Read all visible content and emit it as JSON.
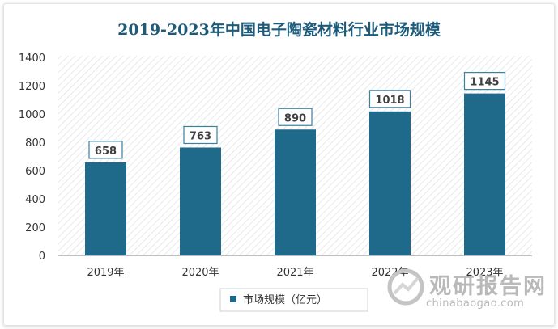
{
  "chart_data": {
    "type": "bar",
    "title": "2019-2023年中国电子陶瓷材料行业市场规模",
    "categories": [
      "2019年",
      "2020年",
      "2021年",
      "2022年",
      "2023年"
    ],
    "series": [
      {
        "name": "市场规模（亿元）",
        "values": [
          658,
          763,
          890,
          1018,
          1145
        ]
      }
    ],
    "ylim": [
      0,
      1400
    ],
    "yticks": [
      0,
      200,
      400,
      600,
      800,
      1000,
      1200,
      1400
    ],
    "xlabel": "",
    "ylabel": "",
    "grid": false,
    "legend": "bottom",
    "colors": {
      "bar": "#1f6a8a",
      "title": "#1d5b7a",
      "label_border": "#3c7fa0"
    }
  },
  "watermark": {
    "name": "观研报告网",
    "url": "chinabaogao.com"
  }
}
